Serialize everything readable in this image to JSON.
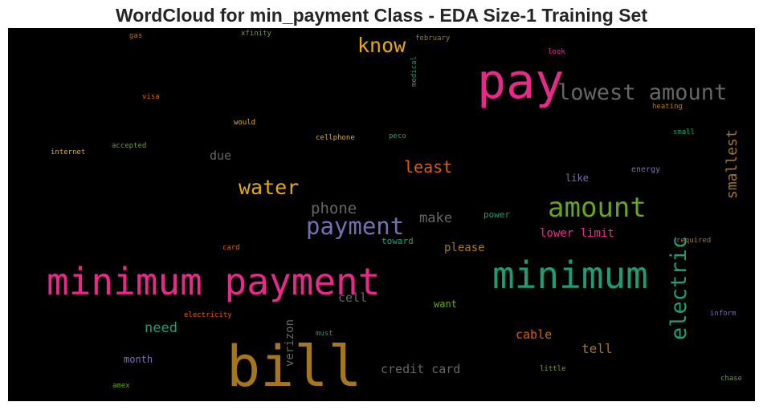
{
  "title": "WordCloud for min_payment Class - EDA Size-1 Training Set",
  "colors": {
    "background": "#000000",
    "title": "#262626"
  },
  "words": [
    {
      "text": "minimum payment",
      "color": "#e7298a"
    },
    {
      "text": "bill",
      "color": "#a6761d"
    },
    {
      "text": "minimum",
      "color": "#1b9e77"
    },
    {
      "text": "pay",
      "color": "#e7298a"
    },
    {
      "text": "lowest amount",
      "color": "#666666"
    },
    {
      "text": "amount",
      "color": "#66a61e"
    },
    {
      "text": "payment",
      "color": "#7570b3"
    },
    {
      "text": "know",
      "color": "#e6ab02"
    },
    {
      "text": "water",
      "color": "#e6ab02"
    },
    {
      "text": "electric",
      "color": "#1b9e77"
    },
    {
      "text": "least",
      "color": "#d95f02"
    },
    {
      "text": "smallest",
      "color": "#a6761d"
    },
    {
      "text": "phone",
      "color": "#666666"
    },
    {
      "text": "make",
      "color": "#666666"
    },
    {
      "text": "need",
      "color": "#1b9e77"
    },
    {
      "text": "credit card",
      "color": "#666666"
    },
    {
      "text": "tell",
      "color": "#a6761d"
    },
    {
      "text": "cable",
      "color": "#d95f02"
    },
    {
      "text": "verizon",
      "color": "#666666"
    },
    {
      "text": "cell",
      "color": "#666666"
    },
    {
      "text": "lower limit",
      "color": "#e7298a"
    },
    {
      "text": "please",
      "color": "#a6761d"
    },
    {
      "text": "due",
      "color": "#666666"
    },
    {
      "text": "month",
      "color": "#7570b3"
    },
    {
      "text": "want",
      "color": "#66a61e"
    },
    {
      "text": "like",
      "color": "#7570b3"
    },
    {
      "text": "power",
      "color": "#1b9e77"
    },
    {
      "text": "toward",
      "color": "#1b9e77"
    },
    {
      "text": "energy",
      "color": "#7570b3"
    },
    {
      "text": "small",
      "color": "#1b9e77"
    },
    {
      "text": "heating",
      "color": "#a6761d"
    },
    {
      "text": "look",
      "color": "#e7298a"
    },
    {
      "text": "february",
      "color": "#a6761d"
    },
    {
      "text": "medical",
      "color": "#1b9e77"
    },
    {
      "text": "xfinity",
      "color": "#66a61e"
    },
    {
      "text": "gas",
      "color": "#a6761d"
    },
    {
      "text": "visa",
      "color": "#d95f02"
    },
    {
      "text": "would",
      "color": "#e6ab02"
    },
    {
      "text": "cellphone",
      "color": "#e6ab02"
    },
    {
      "text": "peco",
      "color": "#1b9e77"
    },
    {
      "text": "internet",
      "color": "#e6ab02"
    },
    {
      "text": "accepted",
      "color": "#66a61e"
    },
    {
      "text": "card",
      "color": "#d95f02"
    },
    {
      "text": "required",
      "color": "#a6761d"
    },
    {
      "text": "electricity",
      "color": "#d95f02"
    },
    {
      "text": "must",
      "color": "#1b9e77"
    },
    {
      "text": "inform",
      "color": "#7570b3"
    },
    {
      "text": "little",
      "color": "#66a61e"
    },
    {
      "text": "chase",
      "color": "#66a61e"
    },
    {
      "text": "amex",
      "color": "#66a61e"
    }
  ]
}
